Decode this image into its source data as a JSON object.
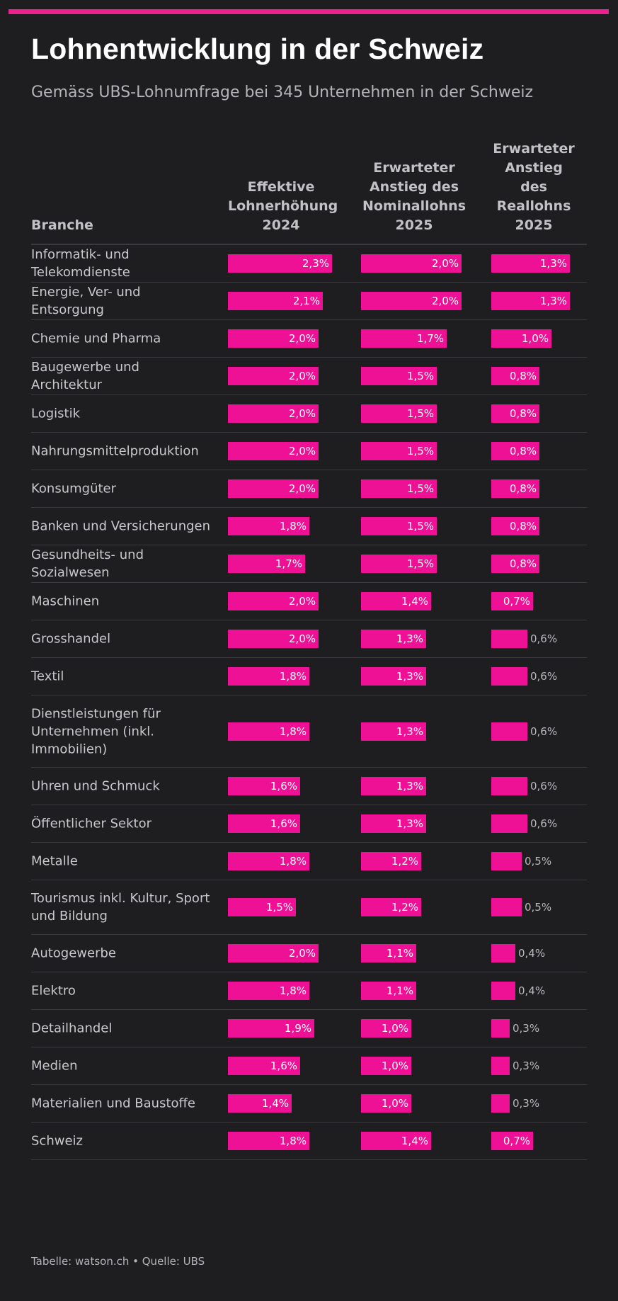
{
  "title": "Lohnentwicklung in der Schweiz",
  "subtitle": "Gemäss UBS-Lohnumfrage bei 345 Unternehmen in der Schweiz",
  "footer": "Tabelle: watson.ch • Quelle: UBS",
  "colors": {
    "accent": "#ee1196",
    "background": "#1e1e20",
    "text": "#e9e9ea",
    "muted": "#b4b4b8"
  },
  "header": {
    "branche": "Branche",
    "col1": "Effektive\nLohnerhöhung\n2024",
    "col2": "Erwarteter\nAnstieg des\nNominallohns\n2025",
    "col3": "Erwarteter\nAnstieg\ndes\nReallohns\n2025"
  },
  "chart_data": {
    "type": "table",
    "columns": [
      "Effektive Lohnerhöhung 2024",
      "Erwarteter Anstieg des Nominallohns 2025",
      "Erwarteter Anstieg des Reallohns 2025"
    ],
    "unit": "%",
    "rows": [
      {
        "branche": "Informatik- und Telekomdienste",
        "values": [
          2.3,
          2.0,
          1.3
        ],
        "labels": [
          "2,3%",
          "2,0%",
          "1,3%"
        ]
      },
      {
        "branche": "Energie, Ver- und Entsorgung",
        "values": [
          2.1,
          2.0,
          1.3
        ],
        "labels": [
          "2,1%",
          "2,0%",
          "1,3%"
        ]
      },
      {
        "branche": "Chemie und Pharma",
        "values": [
          2.0,
          1.7,
          1.0
        ],
        "labels": [
          "2,0%",
          "1,7%",
          "1,0%"
        ]
      },
      {
        "branche": "Baugewerbe und Architektur",
        "values": [
          2.0,
          1.5,
          0.8
        ],
        "labels": [
          "2,0%",
          "1,5%",
          "0,8%"
        ]
      },
      {
        "branche": "Logistik",
        "values": [
          2.0,
          1.5,
          0.8
        ],
        "labels": [
          "2,0%",
          "1,5%",
          "0,8%"
        ]
      },
      {
        "branche": "Nahrungsmittelproduktion",
        "values": [
          2.0,
          1.5,
          0.8
        ],
        "labels": [
          "2,0%",
          "1,5%",
          "0,8%"
        ]
      },
      {
        "branche": "Konsumgüter",
        "values": [
          2.0,
          1.5,
          0.8
        ],
        "labels": [
          "2,0%",
          "1,5%",
          "0,8%"
        ]
      },
      {
        "branche": "Banken und Versicherungen",
        "values": [
          1.8,
          1.5,
          0.8
        ],
        "labels": [
          "1,8%",
          "1,5%",
          "0,8%"
        ]
      },
      {
        "branche": "Gesundheits- und Sozialwesen",
        "values": [
          1.7,
          1.5,
          0.8
        ],
        "labels": [
          "1,7%",
          "1,5%",
          "0,8%"
        ]
      },
      {
        "branche": "Maschinen",
        "values": [
          2.0,
          1.4,
          0.7
        ],
        "labels": [
          "2,0%",
          "1,4%",
          "0,7%"
        ]
      },
      {
        "branche": "Grosshandel",
        "values": [
          2.0,
          1.3,
          0.6
        ],
        "labels": [
          "2,0%",
          "1,3%",
          "0,6%"
        ]
      },
      {
        "branche": "Textil",
        "values": [
          1.8,
          1.3,
          0.6
        ],
        "labels": [
          "1,8%",
          "1,3%",
          "0,6%"
        ]
      },
      {
        "branche": "Dienstleistungen für Unternehmen (inkl. Immobilien)",
        "values": [
          1.8,
          1.3,
          0.6
        ],
        "labels": [
          "1,8%",
          "1,3%",
          "0,6%"
        ]
      },
      {
        "branche": "Uhren und Schmuck",
        "values": [
          1.6,
          1.3,
          0.6
        ],
        "labels": [
          "1,6%",
          "1,3%",
          "0,6%"
        ]
      },
      {
        "branche": "Öffentlicher Sektor",
        "values": [
          1.6,
          1.3,
          0.6
        ],
        "labels": [
          "1,6%",
          "1,3%",
          "0,6%"
        ]
      },
      {
        "branche": "Metalle",
        "values": [
          1.8,
          1.2,
          0.5
        ],
        "labels": [
          "1,8%",
          "1,2%",
          "0,5%"
        ]
      },
      {
        "branche": "Tourismus inkl. Kultur, Sport und Bildung",
        "values": [
          1.5,
          1.2,
          0.5
        ],
        "labels": [
          "1,5%",
          "1,2%",
          "0,5%"
        ]
      },
      {
        "branche": "Autogewerbe",
        "values": [
          2.0,
          1.1,
          0.4
        ],
        "labels": [
          "2,0%",
          "1,1%",
          "0,4%"
        ]
      },
      {
        "branche": "Elektro",
        "values": [
          1.8,
          1.1,
          0.4
        ],
        "labels": [
          "1,8%",
          "1,1%",
          "0,4%"
        ]
      },
      {
        "branche": "Detailhandel",
        "values": [
          1.9,
          1.0,
          0.3
        ],
        "labels": [
          "1,9%",
          "1,0%",
          "0,3%"
        ]
      },
      {
        "branche": "Medien",
        "values": [
          1.6,
          1.0,
          0.3
        ],
        "labels": [
          "1,6%",
          "1,0%",
          "0,3%"
        ]
      },
      {
        "branche": "Materialien und Baustoffe",
        "values": [
          1.4,
          1.0,
          0.3
        ],
        "labels": [
          "1,4%",
          "1,0%",
          "0,3%"
        ]
      },
      {
        "branche": "Schweiz",
        "values": [
          1.8,
          1.4,
          0.7
        ],
        "labels": [
          "1,8%",
          "1,4%",
          "0,7%"
        ]
      }
    ]
  }
}
